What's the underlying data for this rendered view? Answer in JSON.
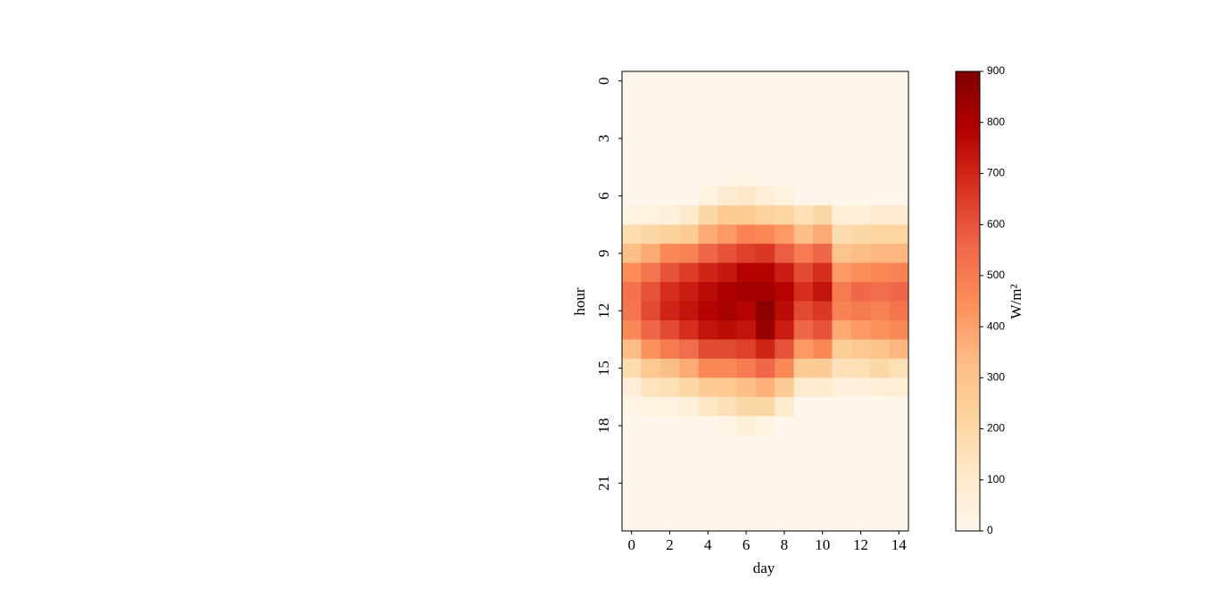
{
  "chart_data": {
    "type": "heatmap",
    "x_label": "day",
    "y_label": "hour",
    "colorbar_label": "W/m²",
    "x": [
      0,
      1,
      2,
      3,
      4,
      5,
      6,
      7,
      8,
      9,
      10,
      11,
      12,
      13,
      14
    ],
    "y": [
      0,
      1,
      2,
      3,
      4,
      5,
      6,
      7,
      8,
      9,
      10,
      11,
      12,
      13,
      14,
      15,
      16,
      17,
      18,
      19,
      20,
      21,
      22,
      23
    ],
    "xlim": [
      -0.5,
      14.5
    ],
    "ylim": [
      23.5,
      -0.5
    ],
    "xticks": [
      0,
      2,
      4,
      6,
      8,
      10,
      12,
      14
    ],
    "yticks": [
      0,
      3,
      6,
      9,
      12,
      15,
      18,
      21
    ],
    "clim": [
      0,
      900
    ],
    "cticks": [
      0,
      100,
      200,
      300,
      400,
      500,
      600,
      700,
      800,
      900
    ],
    "colorscale": [
      "#fff7ec",
      "#fee8c8",
      "#fdd49e",
      "#fdbb84",
      "#fc8d59",
      "#ef6548",
      "#d7301f",
      "#b30000",
      "#7f0000"
    ],
    "z": [
      [
        0,
        0,
        0,
        0,
        0,
        0,
        0,
        0,
        0,
        0,
        0,
        0,
        0,
        0,
        0
      ],
      [
        0,
        0,
        0,
        0,
        0,
        0,
        0,
        0,
        0,
        0,
        0,
        0,
        0,
        0,
        0
      ],
      [
        0,
        0,
        0,
        0,
        0,
        0,
        0,
        0,
        0,
        0,
        0,
        0,
        0,
        0,
        0
      ],
      [
        0,
        0,
        0,
        0,
        0,
        0,
        0,
        0,
        0,
        0,
        0,
        0,
        0,
        0,
        0
      ],
      [
        0,
        0,
        0,
        0,
        0,
        0,
        0,
        0,
        0,
        0,
        0,
        0,
        0,
        0,
        0
      ],
      [
        0,
        0,
        0,
        0,
        0,
        10,
        20,
        0,
        0,
        0,
        0,
        0,
        0,
        0,
        0
      ],
      [
        0,
        0,
        0,
        10,
        40,
        80,
        110,
        70,
        40,
        10,
        10,
        0,
        0,
        0,
        0
      ],
      [
        30,
        40,
        50,
        90,
        200,
        270,
        260,
        230,
        220,
        160,
        200,
        60,
        60,
        80,
        90
      ],
      [
        180,
        200,
        240,
        260,
        380,
        420,
        480,
        460,
        420,
        320,
        380,
        180,
        200,
        220,
        220
      ],
      [
        320,
        380,
        460,
        480,
        560,
        600,
        640,
        660,
        580,
        500,
        560,
        300,
        330,
        350,
        350
      ],
      [
        450,
        520,
        600,
        650,
        700,
        730,
        780,
        780,
        720,
        620,
        680,
        420,
        450,
        470,
        480
      ],
      [
        530,
        600,
        680,
        720,
        760,
        800,
        820,
        820,
        780,
        680,
        740,
        500,
        560,
        540,
        560
      ],
      [
        520,
        620,
        700,
        740,
        780,
        810,
        780,
        870,
        760,
        620,
        660,
        480,
        500,
        480,
        520
      ],
      [
        460,
        560,
        620,
        680,
        740,
        760,
        740,
        840,
        720,
        560,
        600,
        380,
        420,
        440,
        460
      ],
      [
        330,
        440,
        500,
        540,
        620,
        620,
        640,
        700,
        600,
        420,
        460,
        250,
        280,
        300,
        350
      ],
      [
        180,
        280,
        320,
        380,
        460,
        460,
        500,
        560,
        460,
        260,
        260,
        150,
        160,
        200,
        160
      ],
      [
        60,
        140,
        160,
        200,
        260,
        270,
        320,
        360,
        260,
        90,
        90,
        50,
        50,
        60,
        70
      ],
      [
        20,
        30,
        40,
        60,
        120,
        150,
        200,
        200,
        100,
        0,
        0,
        0,
        0,
        0,
        0
      ],
      [
        0,
        0,
        0,
        10,
        10,
        20,
        60,
        30,
        0,
        0,
        0,
        0,
        0,
        0,
        0
      ],
      [
        0,
        0,
        0,
        0,
        0,
        0,
        0,
        0,
        0,
        0,
        0,
        0,
        0,
        0,
        0
      ],
      [
        0,
        0,
        0,
        0,
        0,
        0,
        0,
        0,
        0,
        0,
        0,
        0,
        0,
        0,
        0
      ],
      [
        0,
        0,
        0,
        0,
        0,
        0,
        0,
        0,
        0,
        0,
        0,
        0,
        0,
        0,
        0
      ],
      [
        0,
        0,
        0,
        0,
        0,
        0,
        0,
        0,
        0,
        0,
        0,
        0,
        0,
        0,
        0
      ],
      [
        0,
        0,
        0,
        0,
        0,
        0,
        0,
        0,
        0,
        0,
        0,
        0,
        0,
        0,
        0
      ]
    ]
  }
}
